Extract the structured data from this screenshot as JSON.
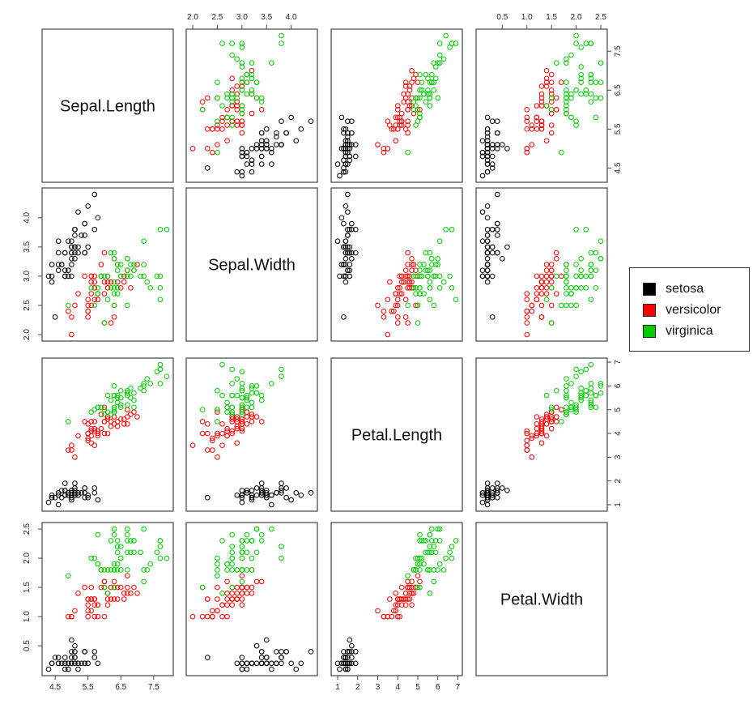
{
  "chart_data": {
    "type": "scatter",
    "variables": [
      "Sepal.Length",
      "Sepal.Width",
      "Petal.Length",
      "Petal.Width"
    ],
    "ticks": {
      "Sepal.Length": [
        "4.5",
        "5.5",
        "6.5",
        "7.5"
      ],
      "Sepal.Width": [
        "2.0",
        "2.5",
        "3.0",
        "3.5",
        "4.0"
      ],
      "Petal.Length": [
        "1",
        "2",
        "3",
        "4",
        "5",
        "6",
        "7"
      ],
      "Petal.Width": [
        "0.5",
        "1.0",
        "1.5",
        "2.0",
        "2.5"
      ]
    },
    "bottom_ticks": {
      "Sepal.Length": [
        "4.5",
        "5.5",
        "6.5",
        "7.5"
      ],
      "Sepal.Width": [],
      "Petal.Length": [
        "1",
        "2",
        "3",
        "4",
        "5",
        "6",
        "7"
      ],
      "Petal.Width": []
    },
    "left_ticks": {
      "Sepal.Length": [],
      "Sepal.Width": [
        "2.0",
        "2.5",
        "3.0",
        "3.5",
        "4.0"
      ],
      "Petal.Length": [],
      "Petal.Width": [
        "0.5",
        "1.0",
        "1.5",
        "2.0",
        "2.5"
      ]
    },
    "top_ticks": {
      "Sepal.Length": [],
      "Sepal.Width": [
        "2.0",
        "2.5",
        "3.0",
        "3.5",
        "4.0"
      ],
      "Petal.Length": [],
      "Petal.Width": [
        "0.5",
        "1.0",
        "1.5",
        "2.0",
        "2.5"
      ]
    },
    "right_ticks": {
      "Sepal.Length": [
        "4.5",
        "5.5",
        "6.5",
        "7.5"
      ],
      "Sepal.Width": [],
      "Petal.Length": [
        "1",
        "2",
        "3",
        "4",
        "5",
        "6",
        "7"
      ],
      "Petal.Width": []
    },
    "ranges": {
      "Sepal.Length": [
        4.3,
        7.9
      ],
      "Sepal.Width": [
        2.0,
        4.4
      ],
      "Petal.Length": [
        1.0,
        6.9
      ],
      "Petal.Width": [
        0.1,
        2.5
      ]
    },
    "series": [
      {
        "name": "setosa",
        "color": "#000000",
        "points": [
          [
            5.1,
            3.5,
            1.4,
            0.2
          ],
          [
            4.9,
            3.0,
            1.4,
            0.2
          ],
          [
            4.7,
            3.2,
            1.3,
            0.2
          ],
          [
            4.6,
            3.1,
            1.5,
            0.2
          ],
          [
            5.0,
            3.6,
            1.4,
            0.2
          ],
          [
            5.4,
            3.9,
            1.7,
            0.4
          ],
          [
            4.6,
            3.4,
            1.4,
            0.3
          ],
          [
            5.0,
            3.4,
            1.5,
            0.2
          ],
          [
            4.4,
            2.9,
            1.4,
            0.2
          ],
          [
            4.9,
            3.1,
            1.5,
            0.1
          ],
          [
            5.4,
            3.7,
            1.5,
            0.2
          ],
          [
            4.8,
            3.4,
            1.6,
            0.2
          ],
          [
            4.8,
            3.0,
            1.4,
            0.1
          ],
          [
            4.3,
            3.0,
            1.1,
            0.1
          ],
          [
            5.8,
            4.0,
            1.2,
            0.2
          ],
          [
            5.7,
            4.4,
            1.5,
            0.4
          ],
          [
            5.4,
            3.9,
            1.3,
            0.4
          ],
          [
            5.1,
            3.5,
            1.4,
            0.3
          ],
          [
            5.7,
            3.8,
            1.7,
            0.3
          ],
          [
            5.1,
            3.8,
            1.5,
            0.3
          ],
          [
            5.4,
            3.4,
            1.7,
            0.2
          ],
          [
            5.1,
            3.7,
            1.5,
            0.4
          ],
          [
            4.6,
            3.6,
            1.0,
            0.2
          ],
          [
            5.1,
            3.3,
            1.7,
            0.5
          ],
          [
            4.8,
            3.4,
            1.9,
            0.2
          ],
          [
            5.0,
            3.0,
            1.6,
            0.2
          ],
          [
            5.0,
            3.4,
            1.6,
            0.4
          ],
          [
            5.2,
            3.5,
            1.5,
            0.2
          ],
          [
            5.2,
            3.4,
            1.4,
            0.2
          ],
          [
            4.7,
            3.2,
            1.6,
            0.2
          ],
          [
            4.8,
            3.1,
            1.6,
            0.2
          ],
          [
            5.4,
            3.4,
            1.5,
            0.4
          ],
          [
            5.2,
            4.1,
            1.5,
            0.1
          ],
          [
            5.5,
            4.2,
            1.4,
            0.2
          ],
          [
            4.9,
            3.1,
            1.5,
            0.2
          ],
          [
            5.0,
            3.2,
            1.2,
            0.2
          ],
          [
            5.5,
            3.5,
            1.3,
            0.2
          ],
          [
            4.9,
            3.6,
            1.4,
            0.1
          ],
          [
            4.4,
            3.0,
            1.3,
            0.2
          ],
          [
            5.1,
            3.4,
            1.5,
            0.2
          ],
          [
            5.0,
            3.5,
            1.3,
            0.3
          ],
          [
            4.5,
            2.3,
            1.3,
            0.3
          ],
          [
            4.4,
            3.2,
            1.3,
            0.2
          ],
          [
            5.0,
            3.5,
            1.6,
            0.6
          ],
          [
            5.1,
            3.8,
            1.9,
            0.4
          ],
          [
            4.8,
            3.0,
            1.4,
            0.3
          ],
          [
            5.1,
            3.8,
            1.6,
            0.2
          ],
          [
            4.6,
            3.2,
            1.4,
            0.2
          ],
          [
            5.3,
            3.7,
            1.5,
            0.2
          ],
          [
            5.0,
            3.3,
            1.4,
            0.2
          ]
        ]
      },
      {
        "name": "versicolor",
        "color": "#ff0000",
        "points": [
          [
            7.0,
            3.2,
            4.7,
            1.4
          ],
          [
            6.4,
            3.2,
            4.5,
            1.5
          ],
          [
            6.9,
            3.1,
            4.9,
            1.5
          ],
          [
            5.5,
            2.3,
            4.0,
            1.3
          ],
          [
            6.5,
            2.8,
            4.6,
            1.5
          ],
          [
            5.7,
            2.8,
            4.5,
            1.3
          ],
          [
            6.3,
            3.3,
            4.7,
            1.6
          ],
          [
            4.9,
            2.4,
            3.3,
            1.0
          ],
          [
            6.6,
            2.9,
            4.6,
            1.3
          ],
          [
            5.2,
            2.7,
            3.9,
            1.4
          ],
          [
            5.0,
            2.0,
            3.5,
            1.0
          ],
          [
            5.9,
            3.0,
            4.2,
            1.5
          ],
          [
            6.0,
            2.2,
            4.0,
            1.0
          ],
          [
            6.1,
            2.9,
            4.7,
            1.4
          ],
          [
            5.6,
            2.9,
            3.6,
            1.3
          ],
          [
            6.7,
            3.1,
            4.4,
            1.4
          ],
          [
            5.6,
            3.0,
            4.5,
            1.5
          ],
          [
            5.8,
            2.7,
            4.1,
            1.0
          ],
          [
            6.2,
            2.2,
            4.5,
            1.5
          ],
          [
            5.6,
            2.5,
            3.9,
            1.1
          ],
          [
            5.9,
            3.2,
            4.8,
            1.8
          ],
          [
            6.1,
            2.8,
            4.0,
            1.3
          ],
          [
            6.3,
            2.5,
            4.9,
            1.5
          ],
          [
            6.1,
            2.8,
            4.7,
            1.2
          ],
          [
            6.4,
            2.9,
            4.3,
            1.3
          ],
          [
            6.6,
            3.0,
            4.4,
            1.4
          ],
          [
            6.8,
            2.8,
            4.8,
            1.4
          ],
          [
            6.7,
            3.0,
            5.0,
            1.7
          ],
          [
            6.0,
            2.9,
            4.5,
            1.5
          ],
          [
            5.7,
            2.6,
            3.5,
            1.0
          ],
          [
            5.5,
            2.4,
            3.8,
            1.1
          ],
          [
            5.5,
            2.4,
            3.7,
            1.0
          ],
          [
            5.8,
            2.7,
            3.9,
            1.2
          ],
          [
            6.0,
            2.7,
            5.1,
            1.6
          ],
          [
            5.4,
            3.0,
            4.5,
            1.5
          ],
          [
            6.0,
            3.4,
            4.5,
            1.6
          ],
          [
            6.7,
            3.1,
            4.7,
            1.5
          ],
          [
            6.3,
            2.3,
            4.4,
            1.3
          ],
          [
            5.6,
            3.0,
            4.1,
            1.3
          ],
          [
            5.5,
            2.5,
            4.0,
            1.3
          ],
          [
            5.5,
            2.6,
            4.4,
            1.2
          ],
          [
            6.1,
            3.0,
            4.6,
            1.4
          ],
          [
            5.8,
            2.6,
            4.0,
            1.2
          ],
          [
            5.0,
            2.3,
            3.3,
            1.0
          ],
          [
            5.6,
            2.7,
            4.2,
            1.3
          ],
          [
            5.7,
            3.0,
            4.2,
            1.2
          ],
          [
            5.7,
            2.9,
            4.2,
            1.3
          ],
          [
            6.2,
            2.9,
            4.3,
            1.3
          ],
          [
            5.1,
            2.5,
            3.0,
            1.1
          ],
          [
            5.7,
            2.8,
            4.1,
            1.3
          ]
        ]
      },
      {
        "name": "virginica",
        "color": "#00cd00",
        "points": [
          [
            6.3,
            3.3,
            6.0,
            2.5
          ],
          [
            5.8,
            2.7,
            5.1,
            1.9
          ],
          [
            7.1,
            3.0,
            5.9,
            2.1
          ],
          [
            6.3,
            2.9,
            5.6,
            1.8
          ],
          [
            6.5,
            3.0,
            5.8,
            2.2
          ],
          [
            7.6,
            3.0,
            6.6,
            2.1
          ],
          [
            4.9,
            2.5,
            4.5,
            1.7
          ],
          [
            7.3,
            2.9,
            6.3,
            1.8
          ],
          [
            6.7,
            2.5,
            5.8,
            1.8
          ],
          [
            7.2,
            3.6,
            6.1,
            2.5
          ],
          [
            6.5,
            3.2,
            5.1,
            2.0
          ],
          [
            6.4,
            2.7,
            5.3,
            1.9
          ],
          [
            6.8,
            3.0,
            5.5,
            2.1
          ],
          [
            5.7,
            2.5,
            5.0,
            2.0
          ],
          [
            5.8,
            2.8,
            5.1,
            2.4
          ],
          [
            6.4,
            3.2,
            5.3,
            2.3
          ],
          [
            6.5,
            3.0,
            5.5,
            1.8
          ],
          [
            7.7,
            3.8,
            6.7,
            2.2
          ],
          [
            7.7,
            2.6,
            6.9,
            2.3
          ],
          [
            6.0,
            2.2,
            5.0,
            1.5
          ],
          [
            6.9,
            3.2,
            5.7,
            2.3
          ],
          [
            5.6,
            2.8,
            4.9,
            2.0
          ],
          [
            7.7,
            2.8,
            6.7,
            2.0
          ],
          [
            6.3,
            2.7,
            4.9,
            1.8
          ],
          [
            6.7,
            3.3,
            5.7,
            2.1
          ],
          [
            7.2,
            3.2,
            6.0,
            1.8
          ],
          [
            6.2,
            2.8,
            4.8,
            1.8
          ],
          [
            6.1,
            3.0,
            4.9,
            1.8
          ],
          [
            6.4,
            2.8,
            5.6,
            2.1
          ],
          [
            7.2,
            3.0,
            5.8,
            1.6
          ],
          [
            7.4,
            2.8,
            6.1,
            1.9
          ],
          [
            7.9,
            3.8,
            6.4,
            2.0
          ],
          [
            6.4,
            2.8,
            5.6,
            2.2
          ],
          [
            6.3,
            2.8,
            5.1,
            1.5
          ],
          [
            6.1,
            2.6,
            5.6,
            1.4
          ],
          [
            7.7,
            3.0,
            6.1,
            2.3
          ],
          [
            6.3,
            3.4,
            5.6,
            2.4
          ],
          [
            6.4,
            3.1,
            5.5,
            1.8
          ],
          [
            6.0,
            3.0,
            4.8,
            1.8
          ],
          [
            6.9,
            3.1,
            5.4,
            2.1
          ],
          [
            6.7,
            3.1,
            5.6,
            2.4
          ],
          [
            6.9,
            3.1,
            5.1,
            2.3
          ],
          [
            5.8,
            2.7,
            5.1,
            1.9
          ],
          [
            6.8,
            3.2,
            5.9,
            2.3
          ],
          [
            6.7,
            3.3,
            5.7,
            2.5
          ],
          [
            6.7,
            3.0,
            5.2,
            2.3
          ],
          [
            6.3,
            2.5,
            5.0,
            1.9
          ],
          [
            6.5,
            3.0,
            5.2,
            2.0
          ],
          [
            6.2,
            3.4,
            5.4,
            2.3
          ],
          [
            5.9,
            3.0,
            5.1,
            1.8
          ]
        ]
      }
    ],
    "legend": [
      "setosa",
      "versicolor",
      "virginica"
    ]
  }
}
